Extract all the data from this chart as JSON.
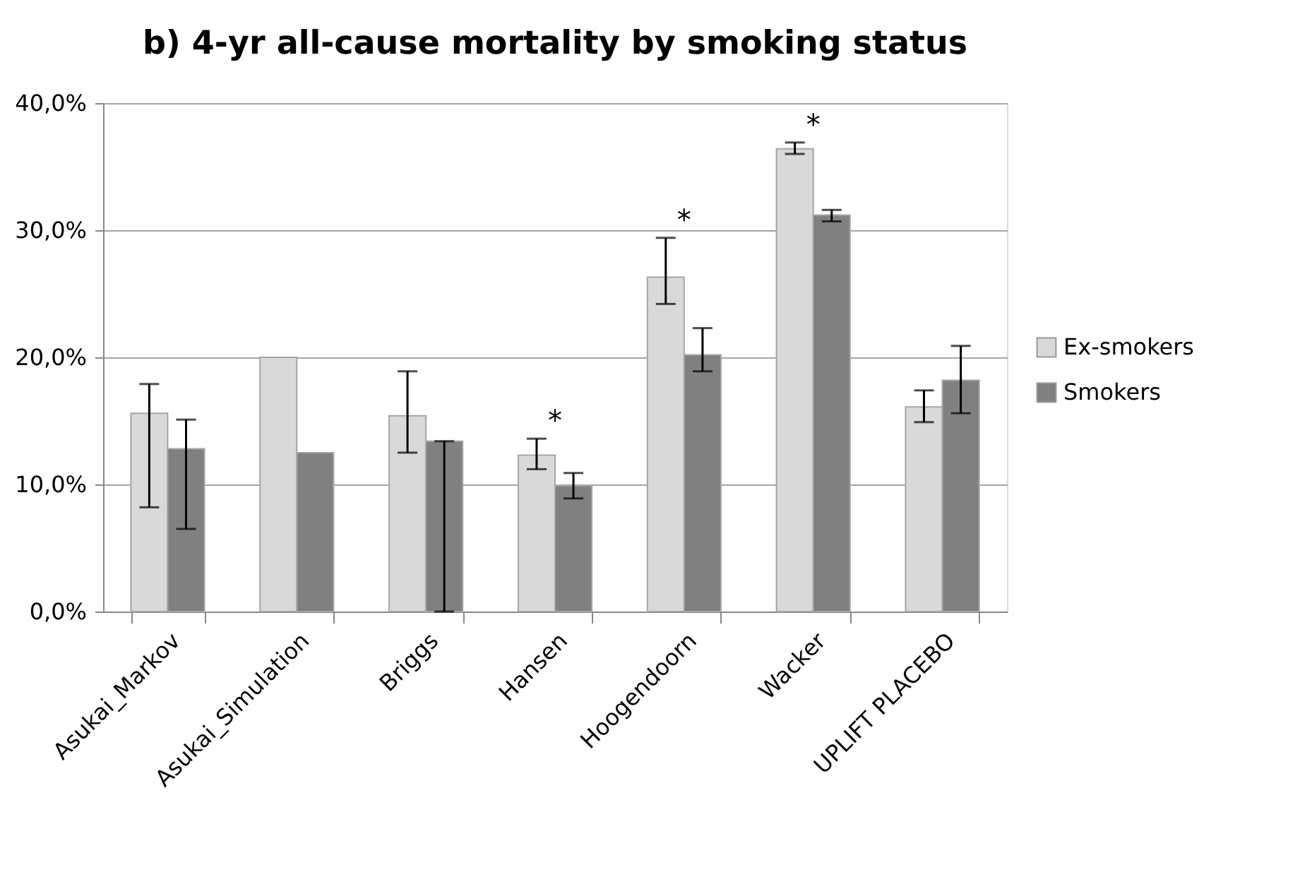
{
  "chart_data": {
    "type": "bar",
    "title": "b) 4-yr all-cause mortality by smoking status",
    "categories": [
      "Asukai_Markov",
      "Asukai_Simulation",
      "Briggs",
      "Hansen",
      "Hoogendoorn",
      "Wacker",
      "UPLIFT PLACEBO"
    ],
    "series": [
      {
        "name": "Ex-smokers",
        "color": "#d9d9d9",
        "values": [
          15.6,
          20.0,
          15.4,
          12.3,
          26.3,
          36.4,
          16.1
        ],
        "errors": [
          [
            8.2,
            17.9
          ],
          null,
          [
            12.5,
            18.9
          ],
          [
            11.2,
            13.6
          ],
          [
            24.2,
            29.4
          ],
          [
            36.0,
            36.9
          ],
          [
            14.9,
            17.4
          ]
        ]
      },
      {
        "name": "Smokers",
        "color": "#808080",
        "values": [
          12.8,
          12.5,
          13.4,
          9.9,
          20.2,
          31.2,
          18.2
        ],
        "errors": [
          [
            6.5,
            15.1
          ],
          null,
          [
            0,
            13.4
          ],
          [
            8.9,
            10.9
          ],
          [
            18.9,
            22.3
          ],
          [
            30.7,
            31.6
          ],
          [
            15.6,
            20.9
          ]
        ]
      }
    ],
    "annotations": [
      {
        "text": "*",
        "x": "Hansen",
        "y": 12.3
      },
      {
        "text": "*",
        "x": "Hoogendoorn",
        "y": 26.3
      },
      {
        "text": "*",
        "x": "Wacker",
        "y": 36.4
      }
    ],
    "ylim": [
      0,
      40
    ],
    "yticks": [
      {
        "value": 0,
        "label": "0,0%"
      },
      {
        "value": 10,
        "label": "10,0%"
      },
      {
        "value": 20,
        "label": "20,0%"
      },
      {
        "value": 30,
        "label": "30,0%"
      },
      {
        "value": 40,
        "label": "40,0%"
      }
    ],
    "grid": "y",
    "legend": "right"
  }
}
